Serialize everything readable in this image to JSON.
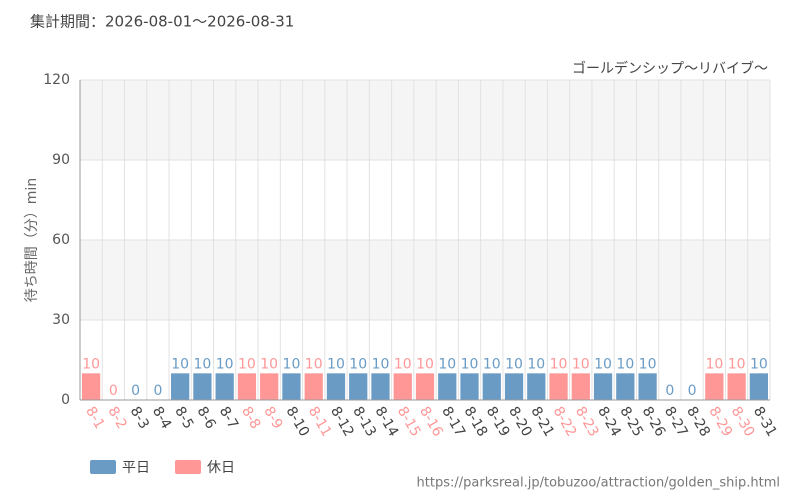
{
  "chart_data": {
    "type": "bar",
    "title": "集計期間：2026-08-01～2026-08-31",
    "subtitle": "ゴールデンシップ～リバイブ～",
    "y_label": "待ち時間（分）min",
    "source": "https://parksreal.jp/tobuzoo/attraction/golden_ship.html",
    "categories": [
      "8-1",
      "8-2",
      "8-3",
      "8-4",
      "8-5",
      "8-6",
      "8-7",
      "8-8",
      "8-9",
      "8-10",
      "8-11",
      "8-12",
      "8-13",
      "8-14",
      "8-15",
      "8-16",
      "8-17",
      "8-18",
      "8-19",
      "8-20",
      "8-21",
      "8-22",
      "8-23",
      "8-24",
      "8-25",
      "8-26",
      "8-27",
      "8-28",
      "8-29",
      "8-30",
      "8-31"
    ],
    "series": [
      {
        "name": "平日",
        "color": "#6a9bc5",
        "values": [
          null,
          null,
          0,
          0,
          10,
          10,
          10,
          null,
          null,
          10,
          null,
          10,
          10,
          10,
          null,
          null,
          10,
          10,
          10,
          10,
          10,
          null,
          null,
          10,
          10,
          10,
          0,
          0,
          null,
          null,
          10
        ]
      },
      {
        "name": "休日",
        "color": "#ff9797",
        "values": [
          10,
          0,
          null,
          null,
          null,
          null,
          null,
          10,
          10,
          null,
          10,
          null,
          null,
          null,
          10,
          10,
          null,
          null,
          null,
          null,
          null,
          10,
          10,
          null,
          null,
          null,
          null,
          null,
          10,
          10,
          null
        ]
      }
    ],
    "ylim": [
      0,
      120
    ],
    "yticks": [
      0,
      30,
      60,
      90,
      120
    ],
    "grid": true
  }
}
